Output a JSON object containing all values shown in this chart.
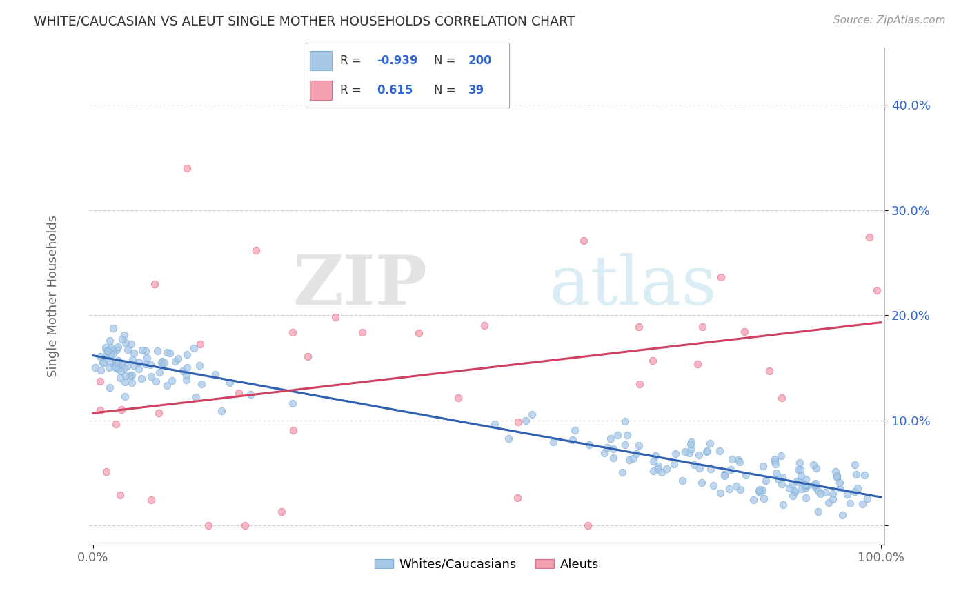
{
  "title": "WHITE/CAUCASIAN VS ALEUT SINGLE MOTHER HOUSEHOLDS CORRELATION CHART",
  "source": "Source: ZipAtlas.com",
  "ylabel": "Single Mother Households",
  "blue_R": -0.939,
  "blue_N": 200,
  "pink_R": 0.615,
  "pink_N": 39,
  "blue_color": "#A8C8E8",
  "blue_edge": "#7EB0D8",
  "pink_color": "#F4A0B0",
  "pink_edge": "#E07090",
  "blue_line_color": "#3060B0",
  "pink_line_color": "#D04060",
  "background_color": "#FFFFFF",
  "grid_color": "#CCCCCC",
  "title_color": "#333333",
  "legend_text_color": "#3366CC",
  "yticks": [
    0.0,
    0.1,
    0.2,
    0.3,
    0.4
  ],
  "ytick_labels": [
    "",
    "10.0%",
    "20.0%",
    "30.0%",
    "40.0%"
  ],
  "xtick_positions": [
    0.0,
    1.0
  ],
  "xtick_labels": [
    "0.0%",
    "100.0%"
  ],
  "watermark_zip": "ZIP",
  "watermark_atlas": "atlas",
  "bottom_legend_blue": "Whites/Caucasians",
  "bottom_legend_pink": "Aleuts",
  "blue_intercept": 0.162,
  "blue_slope": -0.135,
  "pink_intercept": 0.075,
  "pink_slope": 0.155
}
